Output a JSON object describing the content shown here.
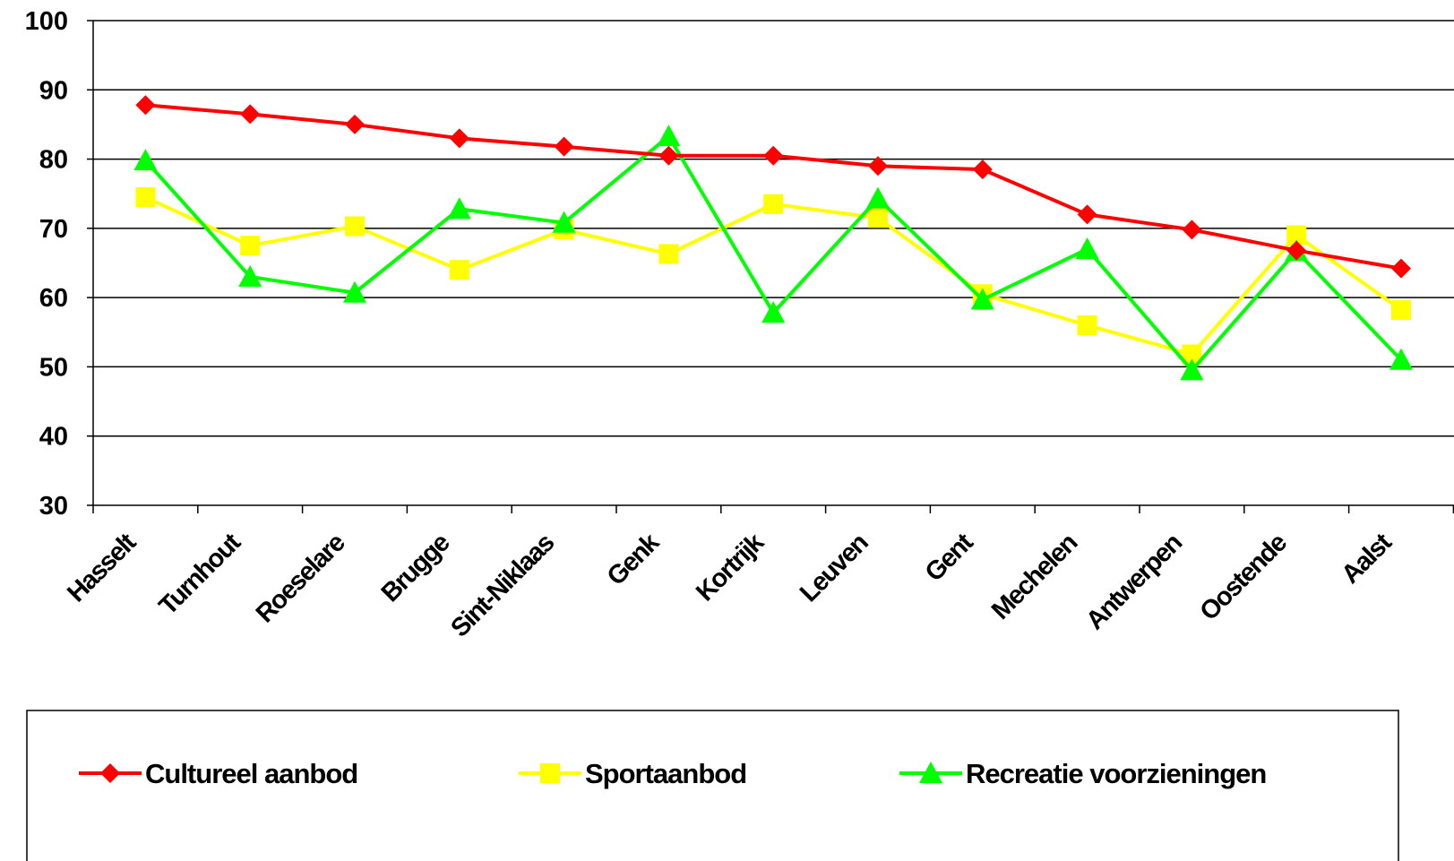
{
  "chart_data": {
    "type": "line",
    "categories": [
      "Hasselt",
      "Turnhout",
      "Roeselare",
      "Brugge",
      "Sint-Niklaas",
      "Genk",
      "Kortrijk",
      "Leuven",
      "Gent",
      "Mechelen",
      "Antwerpen",
      "Oostende",
      "Aalst"
    ],
    "ylim": [
      30,
      100
    ],
    "yticks": [
      30,
      40,
      50,
      60,
      70,
      80,
      90,
      100
    ],
    "grid": true,
    "legend_position": "bottom",
    "series": [
      {
        "name": "Cultureel aanbod",
        "color": "#ff0000",
        "marker": "diamond",
        "values": [
          87.8,
          86.5,
          85.0,
          83.0,
          81.8,
          80.5,
          80.5,
          79.0,
          78.5,
          72.0,
          69.8,
          66.8,
          64.2
        ]
      },
      {
        "name": "Sportaanbod",
        "color": "#ffff00",
        "marker": "square",
        "values": [
          74.5,
          67.5,
          70.3,
          64.0,
          69.8,
          66.3,
          73.5,
          71.5,
          60.5,
          56.0,
          51.8,
          69.0,
          58.2
        ]
      },
      {
        "name": "Recreatie voorzieningen",
        "color": "#00ff00",
        "marker": "triangle",
        "values": [
          79.8,
          63.0,
          60.7,
          72.8,
          70.8,
          83.3,
          57.8,
          74.3,
          59.7,
          67.0,
          49.5,
          66.7,
          51.0
        ]
      }
    ]
  }
}
